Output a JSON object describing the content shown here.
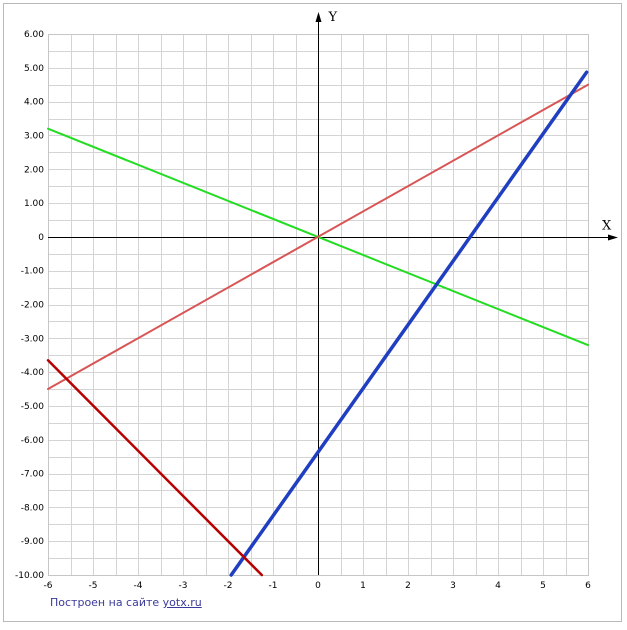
{
  "chart_data": {
    "type": "line",
    "title": "",
    "xlabel": "X",
    "ylabel": "Y",
    "xlim": [
      -6,
      6
    ],
    "ylim": [
      -10,
      6
    ],
    "grid": true,
    "x_ticks": [
      "-6",
      "-5",
      "-4",
      "-3",
      "-2",
      "-1",
      "0",
      "1",
      "2",
      "3",
      "4",
      "5",
      "6"
    ],
    "y_ticks": [
      "6.00",
      "5.00",
      "4.00",
      "3.00",
      "2.00",
      "1.00",
      "0",
      "-1.00",
      "-2.00",
      "-3.00",
      "-4.00",
      "-5.00",
      "-6.00",
      "-7.00",
      "-8.00",
      "-9.00",
      "-10.00"
    ],
    "series": [
      {
        "color": "#22dd22",
        "width": 2,
        "x": [
          -6,
          6
        ],
        "y": [
          3.2,
          -3.2
        ]
      },
      {
        "color": "#d95555",
        "width": 2,
        "x": [
          -6,
          6
        ],
        "y": [
          -4.5,
          4.5
        ]
      },
      {
        "color": "#1f3fc0",
        "width": 3.5,
        "x": [
          -1.93,
          5.97
        ],
        "y": [
          -10,
          4.87
        ]
      },
      {
        "color": "#b80000",
        "width": 2.5,
        "x": [
          -6,
          -1.25
        ],
        "y": [
          -3.65,
          -10
        ]
      }
    ]
  },
  "credit": {
    "text": "Построен на сайте",
    "link": "yotx.ru"
  }
}
